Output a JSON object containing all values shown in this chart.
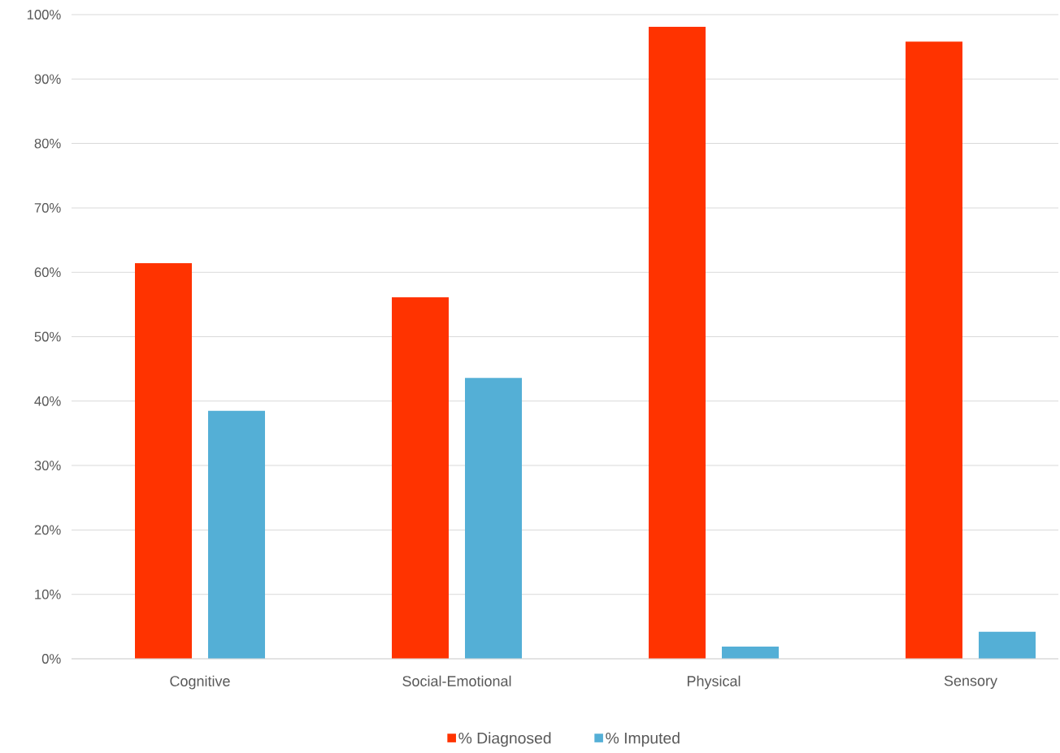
{
  "chart_data": {
    "type": "bar",
    "categories": [
      "Cognitive",
      "Social-Emotional",
      "Physical",
      "Sensory"
    ],
    "series": [
      {
        "name": "% Diagnosed",
        "color": "#ff3300",
        "values": [
          61.4,
          56.1,
          98.1,
          95.8
        ]
      },
      {
        "name": "% Imputed",
        "color": "#54afd6",
        "values": [
          38.5,
          43.6,
          1.9,
          4.2
        ]
      }
    ],
    "ylim": [
      0,
      100
    ],
    "yticks": [
      {
        "value": 0,
        "label": "0%"
      },
      {
        "value": 10,
        "label": "10%"
      },
      {
        "value": 20,
        "label": "20%"
      },
      {
        "value": 30,
        "label": "30%"
      },
      {
        "value": 40,
        "label": "40%"
      },
      {
        "value": 50,
        "label": "50%"
      },
      {
        "value": 60,
        "label": "60%"
      },
      {
        "value": 70,
        "label": "70%"
      },
      {
        "value": 80,
        "label": "80%"
      },
      {
        "value": 90,
        "label": "90%"
      },
      {
        "value": 100,
        "label": "100%"
      }
    ],
    "grid": "y",
    "legend": "bottom"
  }
}
